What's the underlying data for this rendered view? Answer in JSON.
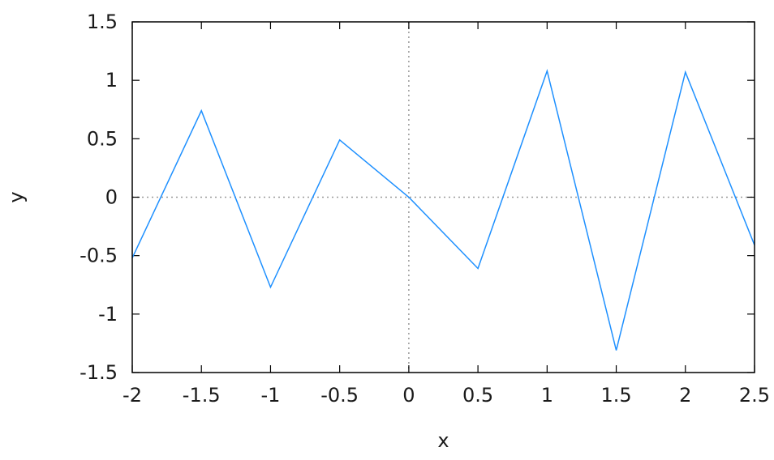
{
  "chart_data": {
    "type": "line",
    "title": "",
    "xlabel": "x",
    "ylabel": "y",
    "xlim": [
      -2,
      2.5
    ],
    "ylim": [
      -1.5,
      1.5
    ],
    "x_ticks": [
      -2,
      -1.5,
      -1,
      -0.5,
      0,
      0.5,
      1,
      1.5,
      2,
      2.5
    ],
    "x_tick_labels": [
      "-2",
      "-1.5",
      "-1",
      "-0.5",
      "0",
      "0.5",
      "1",
      "1.5",
      "2",
      "2.5"
    ],
    "y_ticks": [
      -1.5,
      -1,
      -0.5,
      0,
      0.5,
      1,
      1.5
    ],
    "y_tick_labels": [
      "-1.5",
      "-1",
      "-0.5",
      "0",
      "0.5",
      "1",
      "1.5"
    ],
    "grid": false,
    "zero_lines": true,
    "series": [
      {
        "color": "#1e90ff",
        "x": [
          -2,
          -1.5,
          -1,
          -0.5,
          0,
          0.5,
          1,
          1.5,
          2,
          2.5
        ],
        "y": [
          -0.52,
          0.74,
          -0.77,
          0.49,
          0.0,
          -0.61,
          1.08,
          -1.31,
          1.07,
          -0.41
        ]
      }
    ]
  }
}
